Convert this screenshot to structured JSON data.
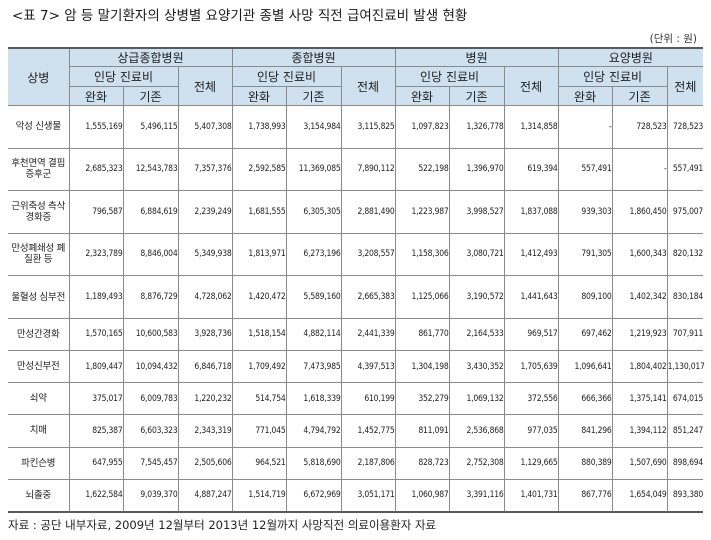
{
  "title": "<표 7> 암 등 말기환자의 상병별 요양기관 종별 사망 직전 급여진료비 발생 현황",
  "unit": "(단위 : 원)",
  "headers": {
    "category": "상병",
    "institutions": [
      "상급종합병원",
      "종합병원",
      "병원",
      "요양병원"
    ],
    "inpatient": "인당 진료비",
    "relief": "완화",
    "standard": "기존",
    "total": "전체"
  },
  "rows": [
    {
      "label": "악성 신생물",
      "values": [
        "1,555,169",
        "5,496,115",
        "5,407,308",
        "1,738,993",
        "3,154,984",
        "3,115,825",
        "1,097,823",
        "1,326,778",
        "1,314,858",
        "-",
        "728,523",
        "728,523"
      ]
    },
    {
      "label": "후천면역 결핍증후군",
      "values": [
        "2,685,323",
        "12,543,783",
        "7,357,376",
        "2,592,585",
        "11,369,085",
        "7,890,112",
        "522,198",
        "1,396,970",
        "619,394",
        "557,491",
        "-",
        "557,491"
      ]
    },
    {
      "label": "근위축성 측삭경화증",
      "values": [
        "796,587",
        "6,884,619",
        "2,239,249",
        "1,681,555",
        "6,305,305",
        "2,881,490",
        "1,223,987",
        "3,998,527",
        "1,837,088",
        "939,303",
        "1,860,450",
        "975,007"
      ]
    },
    {
      "label": "만성폐쇄성 폐질환 등",
      "values": [
        "2,323,789",
        "8,846,004",
        "5,349,938",
        "1,813,971",
        "6,273,196",
        "3,208,557",
        "1,158,306",
        "3,080,721",
        "1,412,493",
        "791,305",
        "1,600,343",
        "820,132"
      ]
    },
    {
      "label": "울혈성 심부전",
      "values": [
        "1,189,493",
        "8,876,729",
        "4,728,062",
        "1,420,472",
        "5,589,160",
        "2,665,383",
        "1,125,066",
        "3,190,572",
        "1,441,643",
        "809,100",
        "1,402,342",
        "830,184"
      ]
    },
    {
      "label": "만성간경화",
      "values": [
        "1,570,165",
        "10,600,583",
        "3,928,736",
        "1,518,154",
        "4,882,114",
        "2,441,339",
        "861,770",
        "2,164,533",
        "969,517",
        "697,462",
        "1,219,923",
        "707,911"
      ]
    },
    {
      "label": "만성신부전",
      "values": [
        "1,809,447",
        "10,094,432",
        "6,846,718",
        "1,709,492",
        "7,473,985",
        "4,397,513",
        "1,304,198",
        "3,430,352",
        "1,705,639",
        "1,096,641",
        "1,804,402",
        "1,130,017"
      ]
    },
    {
      "label": "쇠약",
      "values": [
        "375,017",
        "6,009,783",
        "1,220,232",
        "514,754",
        "1,618,339",
        "610,199",
        "352,279",
        "1,069,132",
        "372,556",
        "666,366",
        "1,375,141",
        "674,015"
      ]
    },
    {
      "label": "치매",
      "values": [
        "825,387",
        "6,603,323",
        "2,343,319",
        "771,045",
        "4,794,792",
        "1,452,775",
        "811,091",
        "2,536,868",
        "977,035",
        "841,296",
        "1,394,112",
        "851,247"
      ]
    },
    {
      "label": "파킨슨병",
      "values": [
        "647,955",
        "7,545,457",
        "2,505,606",
        "964,521",
        "5,818,690",
        "2,187,806",
        "828,723",
        "2,752,308",
        "1,129,665",
        "880,389",
        "1,507,690",
        "898,694"
      ]
    },
    {
      "label": "뇌졸중",
      "values": [
        "1,622,584",
        "9,039,370",
        "4,887,247",
        "1,514,719",
        "6,672,969",
        "3,051,171",
        "1,060,987",
        "3,391,116",
        "1,401,731",
        "867,776",
        "1,654,049",
        "893,380"
      ]
    }
  ],
  "source": "자료 : 공단 내부자료, 2009년 12월부터 2013년 12월까지 사망직전 의료이용환자 자료"
}
